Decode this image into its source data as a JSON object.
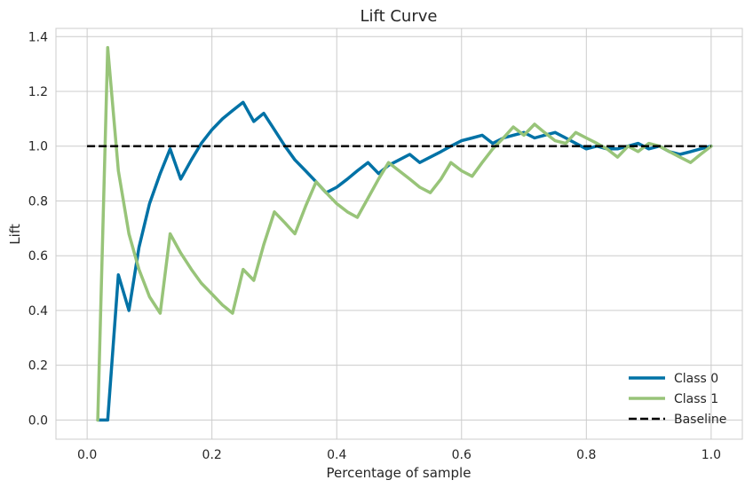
{
  "chart_data": {
    "type": "line",
    "title": "Lift Curve",
    "xlabel": "Percentage of sample",
    "ylabel": "Lift",
    "xlim": [
      -0.05,
      1.05
    ],
    "ylim": [
      -0.07,
      1.43
    ],
    "xticks": [
      0.0,
      0.2,
      0.4,
      0.6,
      0.8,
      1.0
    ],
    "xtick_labels": [
      "0.0",
      "0.2",
      "0.4",
      "0.6",
      "0.8",
      "1.0"
    ],
    "yticks": [
      0.0,
      0.2,
      0.4,
      0.6,
      0.8,
      1.0,
      1.2,
      1.4
    ],
    "ytick_labels": [
      "0.0",
      "0.2",
      "0.4",
      "0.6",
      "0.8",
      "1.0",
      "1.2",
      "1.4"
    ],
    "grid": true,
    "legend_position": "bottom-right",
    "series": [
      {
        "name": "Class 0",
        "color": "#0072a6",
        "style": "solid",
        "x": [
          0.017,
          0.033,
          0.05,
          0.067,
          0.083,
          0.1,
          0.117,
          0.133,
          0.15,
          0.167,
          0.183,
          0.2,
          0.217,
          0.233,
          0.25,
          0.267,
          0.283,
          0.3,
          0.317,
          0.333,
          0.35,
          0.367,
          0.383,
          0.4,
          0.417,
          0.433,
          0.45,
          0.467,
          0.483,
          0.5,
          0.517,
          0.533,
          0.55,
          0.567,
          0.583,
          0.6,
          0.617,
          0.633,
          0.65,
          0.667,
          0.683,
          0.7,
          0.717,
          0.733,
          0.75,
          0.767,
          0.783,
          0.8,
          0.817,
          0.833,
          0.85,
          0.867,
          0.883,
          0.9,
          0.917,
          0.933,
          0.95,
          0.967,
          0.983,
          1.0
        ],
        "values": [
          0.0,
          0.0,
          0.53,
          0.4,
          0.63,
          0.79,
          0.9,
          0.99,
          0.88,
          0.95,
          1.01,
          1.06,
          1.1,
          1.13,
          1.16,
          1.09,
          1.12,
          1.06,
          1.0,
          0.95,
          0.91,
          0.87,
          0.83,
          0.85,
          0.88,
          0.91,
          0.94,
          0.9,
          0.93,
          0.95,
          0.97,
          0.94,
          0.96,
          0.98,
          1.0,
          1.02,
          1.03,
          1.04,
          1.01,
          1.03,
          1.04,
          1.05,
          1.03,
          1.04,
          1.05,
          1.03,
          1.01,
          0.99,
          1.0,
          0.99,
          0.99,
          1.0,
          1.01,
          0.99,
          1.0,
          0.98,
          0.97,
          0.98,
          0.99,
          1.0
        ]
      },
      {
        "name": "Class 1",
        "color": "#98c479",
        "style": "solid",
        "x": [
          0.017,
          0.033,
          0.05,
          0.067,
          0.083,
          0.1,
          0.117,
          0.133,
          0.15,
          0.167,
          0.183,
          0.2,
          0.217,
          0.233,
          0.25,
          0.267,
          0.283,
          0.3,
          0.317,
          0.333,
          0.35,
          0.367,
          0.383,
          0.4,
          0.417,
          0.433,
          0.45,
          0.467,
          0.483,
          0.5,
          0.517,
          0.533,
          0.55,
          0.567,
          0.583,
          0.6,
          0.617,
          0.633,
          0.65,
          0.667,
          0.683,
          0.7,
          0.717,
          0.733,
          0.75,
          0.767,
          0.783,
          0.8,
          0.817,
          0.833,
          0.85,
          0.867,
          0.883,
          0.9,
          0.917,
          0.933,
          0.95,
          0.967,
          0.983,
          1.0
        ],
        "values": [
          0.0,
          1.36,
          0.91,
          0.68,
          0.55,
          0.45,
          0.39,
          0.68,
          0.61,
          0.55,
          0.5,
          0.46,
          0.42,
          0.39,
          0.55,
          0.51,
          0.64,
          0.76,
          0.72,
          0.68,
          0.78,
          0.87,
          0.83,
          0.79,
          0.76,
          0.74,
          0.81,
          0.88,
          0.94,
          0.91,
          0.88,
          0.85,
          0.83,
          0.88,
          0.94,
          0.91,
          0.89,
          0.94,
          0.99,
          1.03,
          1.07,
          1.04,
          1.08,
          1.05,
          1.02,
          1.01,
          1.05,
          1.03,
          1.01,
          0.99,
          0.96,
          1.0,
          0.98,
          1.01,
          1.0,
          0.98,
          0.96,
          0.94,
          0.97,
          1.0
        ]
      },
      {
        "name": "Baseline",
        "color": "#000000",
        "style": "dashed",
        "x": [
          0.0,
          1.0
        ],
        "values": [
          1.0,
          1.0
        ]
      }
    ]
  }
}
